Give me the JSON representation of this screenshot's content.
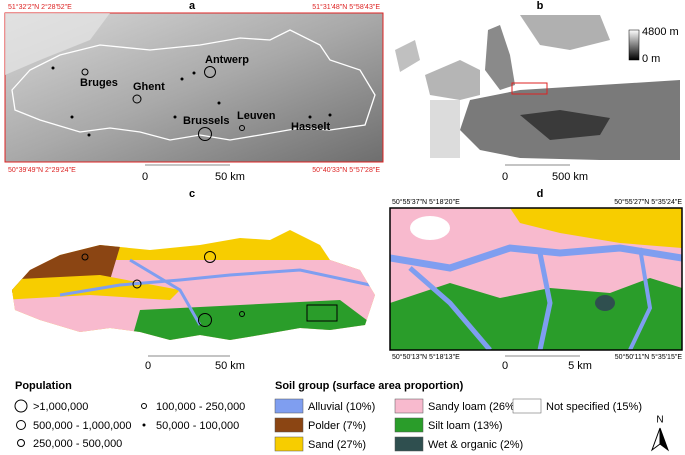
{
  "panel_a": {
    "label": "a",
    "corners": [
      "51°32'2\"N 2°28'52\"E",
      "51°31'48\"N 5°58'43\"E",
      "50°39'49\"N 2°29'24\"E",
      "50°40'33\"N 5°57'28\"E"
    ],
    "cities": [
      "Bruges",
      "Ghent",
      "Antwerp",
      "Brussels",
      "Leuven",
      "Hasselt"
    ],
    "scale": [
      "0",
      "50 km"
    ]
  },
  "panel_b": {
    "label": "b",
    "elevation": [
      "4800 m",
      "0 m"
    ],
    "scale": [
      "0",
      "500 km"
    ]
  },
  "panel_c": {
    "label": "c",
    "scale": [
      "0",
      "50 km"
    ]
  },
  "panel_d": {
    "label": "d",
    "corners": [
      "50°55'37\"N 5°18'20\"E",
      "50°55'27\"N 5°35'24\"E",
      "50°50'13\"N 5°18'13\"E",
      "50°50'11\"N 5°35'15\"E"
    ],
    "scale": [
      "0",
      "5 km"
    ]
  },
  "population_legend": {
    "title": "Population",
    "items": [
      ">1,000,000",
      "500,000 - 1,000,000",
      "250,000 - 500,000",
      "100,000 - 250,000",
      "50,000 - 100,000"
    ]
  },
  "soil_legend": {
    "title": "Soil group (surface area proportion)",
    "items": [
      {
        "label": "Alluvial (10%)",
        "color": "#7f9ef0"
      },
      {
        "label": "Polder (7%)",
        "color": "#8b4513"
      },
      {
        "label": "Sand (27%)",
        "color": "#f7cd00"
      },
      {
        "label": "Sandy loam (26%)",
        "color": "#f8bace"
      },
      {
        "label": "Silt loam (13%)",
        "color": "#2a9d2a"
      },
      {
        "label": "Wet & organic (2%)",
        "color": "#2f4f4f"
      },
      {
        "label": "Not specified (15%)",
        "color": "#ffffff"
      }
    ]
  },
  "north": "N"
}
